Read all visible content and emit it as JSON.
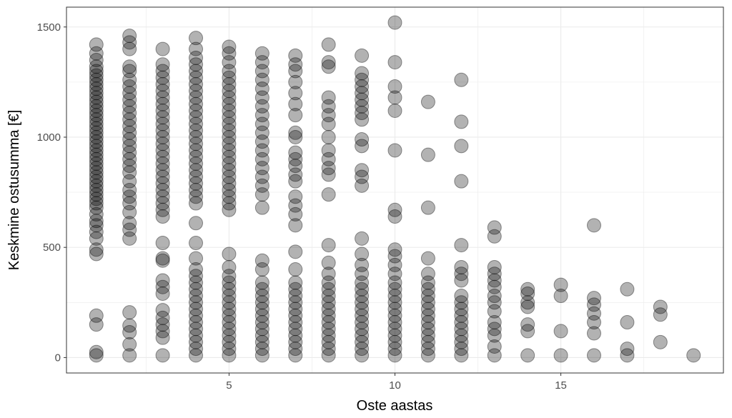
{
  "chart_data": {
    "type": "scatter",
    "title": "",
    "xlabel": "Oste aastas",
    "ylabel": "Keskmine ostusumma [€]",
    "xlim": [
      0.1,
      19.9
    ],
    "ylim": [
      -70,
      1590
    ],
    "x_ticks": [
      5,
      10,
      15
    ],
    "x_tick_labels": [
      "5",
      "10",
      "15"
    ],
    "y_ticks": [
      0,
      500,
      1000,
      1500
    ],
    "y_tick_labels": [
      "0",
      "500",
      "1000",
      "1500"
    ],
    "grid": true,
    "theme": "bw",
    "point_color": "#000000",
    "point_opacity": 0.3,
    "panel_border_color": "#333333",
    "grid_color": "#ebebeb",
    "point_note": "each column lists the y values (EUR) of points plotted at that x; columns at x=1 and x=2 contain many overlapping points",
    "columns": [
      {
        "x": 1,
        "y": [
          10,
          25,
          150,
          190,
          470,
          490,
          540,
          570,
          600,
          620,
          650,
          680,
          700,
          720,
          740,
          760,
          780,
          800,
          820,
          840,
          860,
          880,
          900,
          920,
          940,
          960,
          980,
          1000,
          1020,
          1040,
          1060,
          1080,
          1100,
          1120,
          1140,
          1160,
          1180,
          1200,
          1220,
          1240,
          1260,
          1280,
          1300,
          1320,
          1350,
          1380,
          1420
        ]
      },
      {
        "x": 2,
        "y": [
          10,
          60,
          115,
          145,
          205,
          540,
          580,
          610,
          660,
          700,
          730,
          760,
          800,
          840,
          870,
          900,
          930,
          960,
          990,
          1020,
          1050,
          1080,
          1110,
          1140,
          1170,
          1200,
          1230,
          1260,
          1300,
          1320,
          1400,
          1430,
          1460
        ]
      },
      {
        "x": 3,
        "y": [
          10,
          90,
          120,
          150,
          180,
          215,
          290,
          320,
          350,
          440,
          450,
          520,
          640,
          670,
          700,
          730,
          760,
          790,
          820,
          850,
          880,
          910,
          940,
          970,
          1000,
          1030,
          1060,
          1090,
          1120,
          1150,
          1180,
          1210,
          1240,
          1270,
          1300,
          1330,
          1400
        ]
      },
      {
        "x": 4,
        "y": [
          10,
          40,
          70,
          100,
          130,
          160,
          190,
          220,
          250,
          280,
          310,
          340,
          370,
          400,
          450,
          520,
          610,
          700,
          730,
          760,
          790,
          820,
          850,
          880,
          910,
          940,
          970,
          1000,
          1030,
          1060,
          1090,
          1120,
          1150,
          1180,
          1210,
          1240,
          1270,
          1300,
          1330,
          1360,
          1400,
          1450
        ]
      },
      {
        "x": 5,
        "y": [
          10,
          40,
          70,
          100,
          130,
          160,
          190,
          220,
          250,
          280,
          310,
          340,
          370,
          410,
          470,
          670,
          700,
          730,
          760,
          790,
          820,
          850,
          880,
          910,
          940,
          970,
          1000,
          1030,
          1060,
          1090,
          1120,
          1150,
          1180,
          1210,
          1240,
          1270,
          1300,
          1340,
          1380,
          1410
        ]
      },
      {
        "x": 6,
        "y": [
          10,
          40,
          70,
          100,
          130,
          160,
          190,
          220,
          250,
          280,
          310,
          340,
          400,
          440,
          680,
          740,
          780,
          820,
          860,
          900,
          940,
          980,
          1020,
          1060,
          1100,
          1140,
          1180,
          1220,
          1260,
          1300,
          1340,
          1380
        ]
      },
      {
        "x": 7,
        "y": [
          10,
          40,
          70,
          100,
          130,
          160,
          190,
          220,
          250,
          280,
          310,
          340,
          400,
          480,
          600,
          650,
          690,
          730,
          800,
          830,
          870,
          900,
          930,
          1000,
          1020,
          1100,
          1150,
          1200,
          1250,
          1300,
          1330,
          1370
        ]
      },
      {
        "x": 8,
        "y": [
          10,
          40,
          70,
          100,
          130,
          160,
          190,
          220,
          250,
          280,
          310,
          340,
          380,
          430,
          510,
          740,
          830,
          860,
          900,
          940,
          1000,
          1060,
          1100,
          1140,
          1180,
          1320,
          1340,
          1420
        ]
      },
      {
        "x": 9,
        "y": [
          10,
          40,
          70,
          100,
          130,
          160,
          190,
          220,
          250,
          280,
          310,
          340,
          380,
          420,
          470,
          540,
          780,
          820,
          850,
          960,
          990,
          1080,
          1110,
          1140,
          1170,
          1200,
          1230,
          1260,
          1290,
          1370
        ]
      },
      {
        "x": 10,
        "y": [
          10,
          40,
          70,
          100,
          130,
          160,
          190,
          220,
          250,
          280,
          310,
          340,
          380,
          420,
          460,
          490,
          640,
          670,
          940,
          1120,
          1180,
          1230,
          1340,
          1520
        ]
      },
      {
        "x": 11,
        "y": [
          10,
          40,
          70,
          100,
          130,
          160,
          190,
          220,
          250,
          280,
          310,
          340,
          380,
          450,
          680,
          920,
          1160
        ]
      },
      {
        "x": 12,
        "y": [
          10,
          40,
          70,
          100,
          130,
          160,
          190,
          220,
          250,
          280,
          350,
          380,
          410,
          510,
          800,
          960,
          1070,
          1260
        ]
      },
      {
        "x": 13,
        "y": [
          10,
          50,
          100,
          130,
          160,
          210,
          250,
          280,
          320,
          350,
          380,
          410,
          550,
          590
        ]
      },
      {
        "x": 14,
        "y": [
          10,
          120,
          150,
          230,
          250,
          290,
          310
        ]
      },
      {
        "x": 15,
        "y": [
          10,
          120,
          280,
          330
        ]
      },
      {
        "x": 16,
        "y": [
          10,
          110,
          160,
          200,
          240,
          270,
          600
        ]
      },
      {
        "x": 17,
        "y": [
          10,
          40,
          160,
          310
        ]
      },
      {
        "x": 18,
        "y": [
          70,
          195,
          230
        ]
      },
      {
        "x": 19,
        "y": [
          10
        ]
      }
    ]
  }
}
